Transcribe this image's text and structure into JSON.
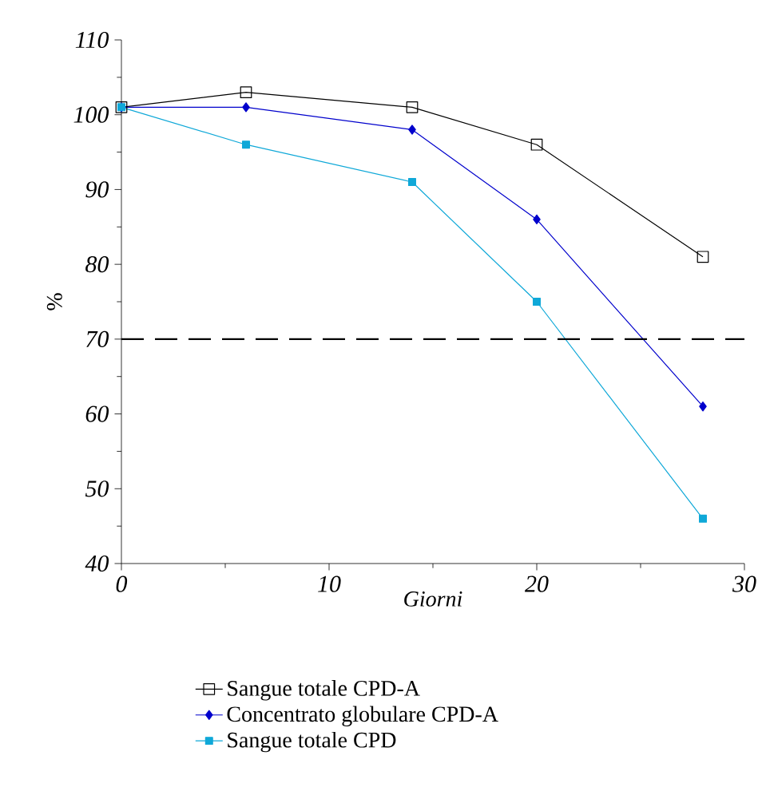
{
  "chart_data": {
    "type": "line",
    "xlabel": "Giorni",
    "ylabel": "%",
    "x": [
      0,
      6,
      14,
      20,
      28
    ],
    "series": [
      {
        "name": "Sangue totale CPD-A",
        "color": "#000000",
        "marker": "square",
        "values": [
          101,
          103,
          101,
          96,
          81
        ]
      },
      {
        "name": "Concentrato globulare CPD-A",
        "color": "#0000cc",
        "marker": "diamond",
        "values": [
          101,
          101,
          98,
          86,
          61
        ]
      },
      {
        "name": "Sangue totale CPD",
        "color": "#0fa8d8",
        "marker": "square*",
        "values": [
          101,
          96,
          91,
          75,
          46
        ]
      }
    ],
    "xlim": [
      0,
      30
    ],
    "xticks": [
      0,
      10,
      20,
      30
    ],
    "ylim": [
      40,
      110
    ],
    "yticks": [
      40,
      50,
      60,
      70,
      80,
      90,
      100,
      110
    ],
    "ref_lines": [
      {
        "axis": "y",
        "value": 70,
        "color": "#000000",
        "line_style": "dashed"
      }
    ],
    "legend": "bottom",
    "grid": false
  }
}
